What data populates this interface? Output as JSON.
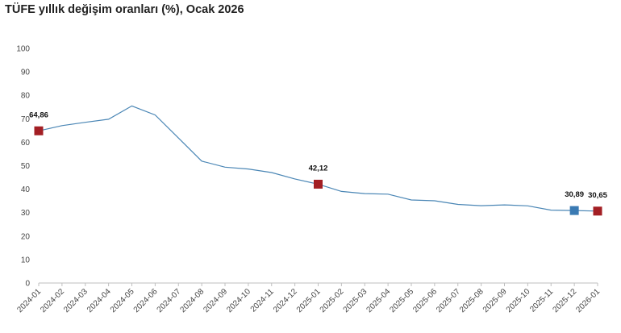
{
  "title": "TÜFE yıllık değişim oranları (%), Ocak 2026",
  "chart_data": {
    "type": "line",
    "title": "TÜFE yıllık değişim oranları (%), Ocak 2026",
    "xlabel": "",
    "ylabel": "",
    "ylim": [
      0,
      100
    ],
    "yticks": [
      0,
      10,
      20,
      30,
      40,
      50,
      60,
      70,
      80,
      90,
      100
    ],
    "grid": false,
    "categories": [
      "2024-01",
      "2024-02",
      "2024-03",
      "2024-04",
      "2024-05",
      "2024-06",
      "2024-07",
      "2024-08",
      "2024-09",
      "2024-10",
      "2024-11",
      "2024-12",
      "2025-01",
      "2025-02",
      "2025-03",
      "2025-04",
      "2025-05",
      "2025-06",
      "2025-07",
      "2025-08",
      "2025-09",
      "2025-10",
      "2025-11",
      "2025-12",
      "2026-01"
    ],
    "series": [
      {
        "color": "#4a86b5",
        "values": [
          64.86,
          67.07,
          68.5,
          69.8,
          75.45,
          71.6,
          61.78,
          51.97,
          49.38,
          48.58,
          47.09,
          44.38,
          42.12,
          39.05,
          38.1,
          37.86,
          35.41,
          35.05,
          33.52,
          32.95,
          33.29,
          32.87,
          31.07,
          30.89,
          30.65
        ]
      }
    ],
    "markers": [
      {
        "index": 0,
        "label": "64,86",
        "color": "#a31f24"
      },
      {
        "index": 12,
        "label": "42,12",
        "color": "#a31f24"
      },
      {
        "index": 23,
        "label": "30,89",
        "color": "#3a7ab3"
      },
      {
        "index": 24,
        "label": "30,65",
        "color": "#a31f24"
      }
    ]
  }
}
